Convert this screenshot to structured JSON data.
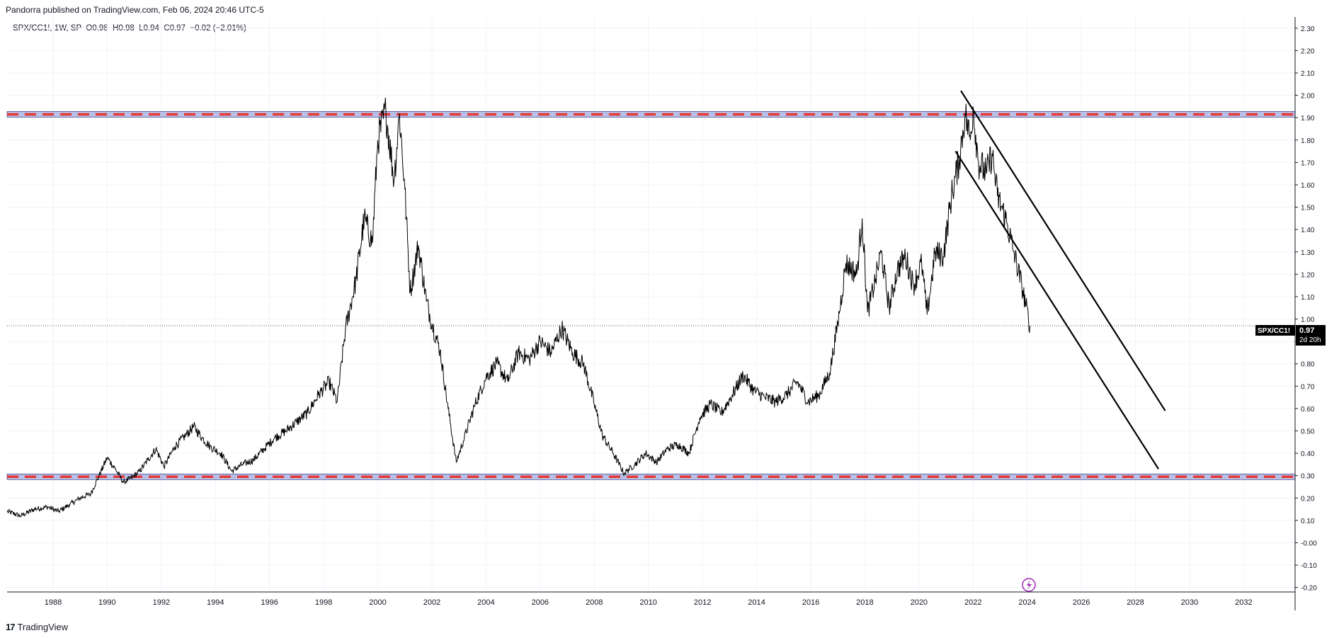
{
  "header": {
    "published_text": "Pandorra published on TradingView.com, Feb 06, 2024 20:46 UTC-5"
  },
  "legend": {
    "symbol": "SPX/CC1!, 1W, SP",
    "ohlc": "O0.98  H0.98  L0.94  C0.97  −0.02 (−2.01%)"
  },
  "price_label": {
    "symbol": "SPX/CC1!",
    "value": "0.97",
    "countdown": "2d 20h"
  },
  "footer": {
    "logo": "17",
    "brand": "TradingView"
  },
  "colors": {
    "line": "#000000",
    "zone_fill": "#b9bfe6",
    "zone_dash": "#e53935",
    "grid": "#f0f3fa",
    "axis_text": "#131722"
  },
  "chart_data": {
    "type": "line",
    "title": "SPX/CC1!",
    "interval": "1W",
    "xlim": [
      1986.3,
      2033.9
    ],
    "ylim": [
      -0.22,
      2.35
    ],
    "x_ticks": [
      "1988",
      "1990",
      "1992",
      "1994",
      "1996",
      "1998",
      "2000",
      "2002",
      "2004",
      "2006",
      "2008",
      "2010",
      "2012",
      "2014",
      "2016",
      "2018",
      "2020",
      "2022",
      "2024",
      "2026",
      "2028",
      "2030",
      "2032"
    ],
    "y_ticks": [
      "2.30",
      "2.20",
      "2.10",
      "2.00",
      "1.90",
      "1.80",
      "1.70",
      "1.60",
      "1.50",
      "1.40",
      "1.30",
      "1.20",
      "1.10",
      "1.00",
      "0.90",
      "0.80",
      "0.70",
      "0.60",
      "0.50",
      "0.40",
      "0.30",
      "0.20",
      "0.10",
      "-0.00",
      "-0.10",
      "-0.20"
    ],
    "last_value": 0.97,
    "series": [
      {
        "points": [
          [
            1986.3,
            0.14
          ],
          [
            1986.8,
            0.12
          ],
          [
            1987.3,
            0.15
          ],
          [
            1987.8,
            0.16
          ],
          [
            1988.2,
            0.14
          ],
          [
            1988.6,
            0.17
          ],
          [
            1989.0,
            0.2
          ],
          [
            1989.4,
            0.22
          ],
          [
            1989.7,
            0.3
          ],
          [
            1990.0,
            0.38
          ],
          [
            1990.3,
            0.33
          ],
          [
            1990.6,
            0.27
          ],
          [
            1990.9,
            0.29
          ],
          [
            1991.2,
            0.32
          ],
          [
            1991.5,
            0.37
          ],
          [
            1991.8,
            0.42
          ],
          [
            1992.1,
            0.34
          ],
          [
            1992.5,
            0.43
          ],
          [
            1992.9,
            0.48
          ],
          [
            1993.2,
            0.52
          ],
          [
            1993.5,
            0.47
          ],
          [
            1993.8,
            0.43
          ],
          [
            1994.2,
            0.4
          ],
          [
            1994.6,
            0.32
          ],
          [
            1995.0,
            0.35
          ],
          [
            1995.4,
            0.37
          ],
          [
            1995.8,
            0.42
          ],
          [
            1996.2,
            0.47
          ],
          [
            1996.6,
            0.5
          ],
          [
            1997.0,
            0.54
          ],
          [
            1997.4,
            0.58
          ],
          [
            1997.8,
            0.66
          ],
          [
            1998.2,
            0.72
          ],
          [
            1998.5,
            0.63
          ],
          [
            1998.8,
            0.95
          ],
          [
            1999.2,
            1.18
          ],
          [
            1999.5,
            1.45
          ],
          [
            1999.8,
            1.34
          ],
          [
            2000.0,
            1.8
          ],
          [
            2000.3,
            1.93
          ],
          [
            2000.6,
            1.62
          ],
          [
            2000.8,
            1.92
          ],
          [
            2001.0,
            1.58
          ],
          [
            2001.2,
            1.12
          ],
          [
            2001.5,
            1.33
          ],
          [
            2001.8,
            1.08
          ],
          [
            2002.0,
            0.98
          ],
          [
            2002.3,
            0.86
          ],
          [
            2002.6,
            0.6
          ],
          [
            2002.9,
            0.36
          ],
          [
            2003.2,
            0.47
          ],
          [
            2003.6,
            0.62
          ],
          [
            2004.0,
            0.74
          ],
          [
            2004.4,
            0.8
          ],
          [
            2004.8,
            0.72
          ],
          [
            2005.2,
            0.85
          ],
          [
            2005.6,
            0.82
          ],
          [
            2006.0,
            0.9
          ],
          [
            2006.4,
            0.85
          ],
          [
            2006.8,
            0.96
          ],
          [
            2007.2,
            0.85
          ],
          [
            2007.6,
            0.8
          ],
          [
            2008.0,
            0.62
          ],
          [
            2008.3,
            0.48
          ],
          [
            2008.7,
            0.4
          ],
          [
            2009.1,
            0.31
          ],
          [
            2009.5,
            0.35
          ],
          [
            2009.9,
            0.4
          ],
          [
            2010.3,
            0.36
          ],
          [
            2010.7,
            0.42
          ],
          [
            2011.1,
            0.44
          ],
          [
            2011.5,
            0.4
          ],
          [
            2011.9,
            0.56
          ],
          [
            2012.3,
            0.62
          ],
          [
            2012.7,
            0.58
          ],
          [
            2013.1,
            0.66
          ],
          [
            2013.5,
            0.75
          ],
          [
            2013.9,
            0.68
          ],
          [
            2014.3,
            0.65
          ],
          [
            2014.7,
            0.63
          ],
          [
            2015.1,
            0.66
          ],
          [
            2015.5,
            0.72
          ],
          [
            2015.9,
            0.63
          ],
          [
            2016.3,
            0.66
          ],
          [
            2016.7,
            0.76
          ],
          [
            2017.0,
            0.98
          ],
          [
            2017.3,
            1.25
          ],
          [
            2017.7,
            1.2
          ],
          [
            2017.9,
            1.45
          ],
          [
            2018.1,
            1.03
          ],
          [
            2018.4,
            1.18
          ],
          [
            2018.6,
            1.3
          ],
          [
            2018.9,
            1.05
          ],
          [
            2019.2,
            1.22
          ],
          [
            2019.5,
            1.28
          ],
          [
            2019.8,
            1.15
          ],
          [
            2020.1,
            1.25
          ],
          [
            2020.3,
            1.02
          ],
          [
            2020.6,
            1.3
          ],
          [
            2020.9,
            1.28
          ],
          [
            2021.2,
            1.55
          ],
          [
            2021.5,
            1.72
          ],
          [
            2021.7,
            1.92
          ],
          [
            2021.9,
            1.8
          ],
          [
            2022.0,
            1.95
          ],
          [
            2022.2,
            1.7
          ],
          [
            2022.5,
            1.65
          ],
          [
            2022.7,
            1.74
          ],
          [
            2022.9,
            1.55
          ],
          [
            2023.2,
            1.45
          ],
          [
            2023.5,
            1.3
          ],
          [
            2023.8,
            1.15
          ],
          [
            2024.1,
            0.97
          ]
        ]
      }
    ],
    "horizontal_zones": [
      1.915,
      0.295
    ],
    "trend_lines": [
      [
        [
          2021.55,
          2.02
        ],
        [
          2029.1,
          0.59
        ]
      ],
      [
        [
          2021.35,
          1.75
        ],
        [
          2028.85,
          0.33
        ]
      ]
    ]
  }
}
